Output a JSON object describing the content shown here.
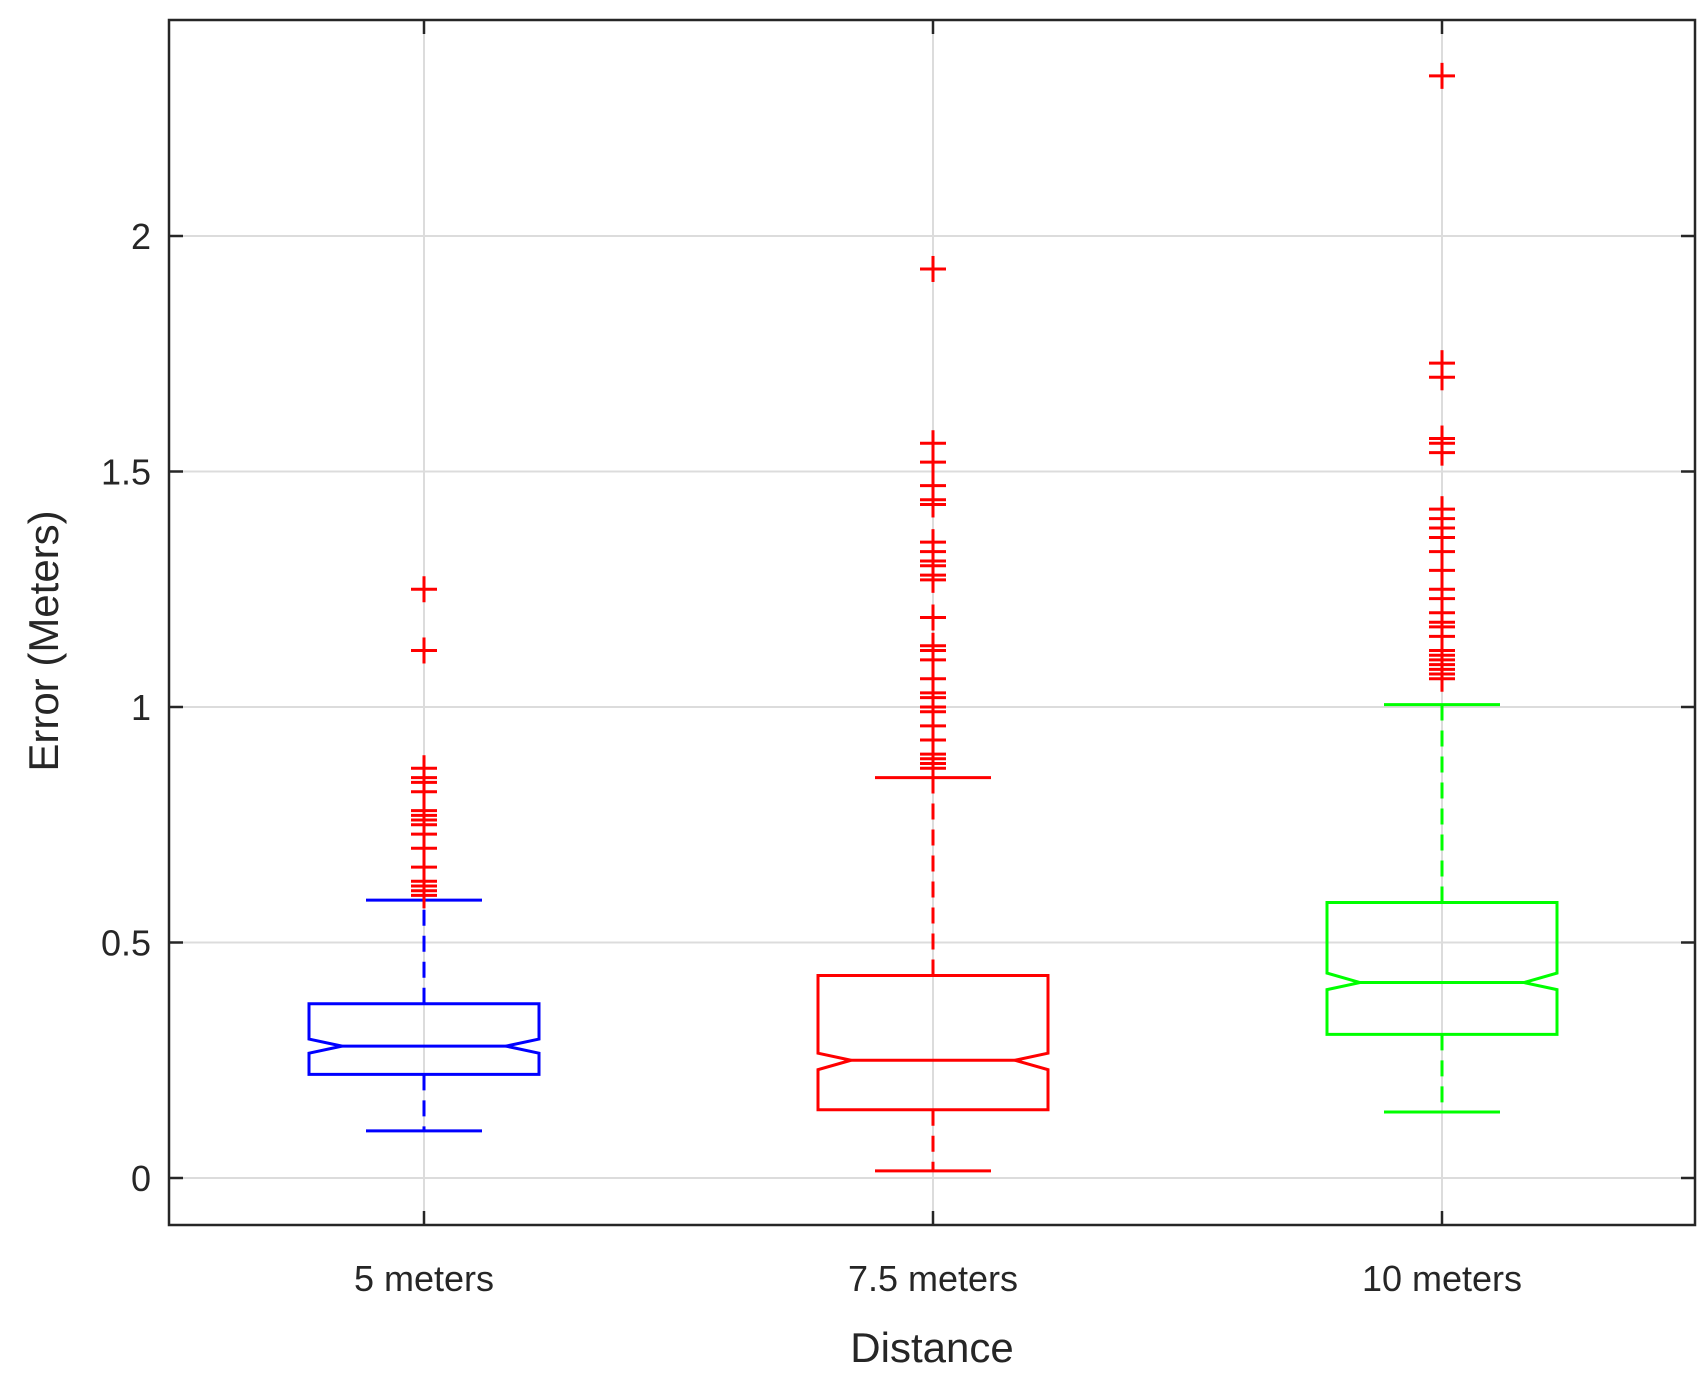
{
  "chart_data": {
    "type": "boxplot",
    "notched": true,
    "xlabel": "Distance",
    "ylabel": "Error (Meters)",
    "ylim": [
      -0.1,
      2.45
    ],
    "yticks": [
      0,
      0.5,
      1,
      1.5,
      2
    ],
    "ytick_labels": [
      "0",
      "0.5",
      "1",
      "1.5",
      "2"
    ],
    "grid": true,
    "categories": [
      "5 meters",
      "7.5 meters",
      "10 meters"
    ],
    "series": [
      {
        "name": "5 meters",
        "color": "#0000ff",
        "whisker_low": 0.1,
        "q1": 0.22,
        "notch_low": 0.265,
        "median": 0.28,
        "notch_high": 0.295,
        "q3": 0.37,
        "whisker_high": 0.59,
        "outliers": [
          0.6,
          0.61,
          0.62,
          0.63,
          0.66,
          0.7,
          0.73,
          0.75,
          0.76,
          0.77,
          0.78,
          0.82,
          0.84,
          0.85,
          0.87,
          1.12,
          1.25
        ]
      },
      {
        "name": "7.5 meters",
        "color": "#ff0000",
        "whisker_low": 0.015,
        "q1": 0.145,
        "notch_low": 0.23,
        "median": 0.25,
        "notch_high": 0.265,
        "q3": 0.43,
        "whisker_high": 0.85,
        "outliers": [
          0.87,
          0.88,
          0.89,
          0.9,
          0.93,
          0.96,
          0.99,
          1.0,
          1.02,
          1.03,
          1.06,
          1.1,
          1.12,
          1.13,
          1.19,
          1.27,
          1.28,
          1.3,
          1.31,
          1.33,
          1.35,
          1.43,
          1.44,
          1.47,
          1.52,
          1.56,
          1.93
        ]
      },
      {
        "name": "10 meters",
        "color": "#00ff00",
        "whisker_low": 0.14,
        "q1": 0.305,
        "notch_low": 0.4,
        "median": 0.415,
        "notch_high": 0.435,
        "q3": 0.585,
        "whisker_high": 1.005,
        "outliers": [
          1.06,
          1.07,
          1.08,
          1.09,
          1.1,
          1.11,
          1.12,
          1.15,
          1.17,
          1.18,
          1.2,
          1.23,
          1.25,
          1.29,
          1.33,
          1.36,
          1.38,
          1.4,
          1.42,
          1.54,
          1.56,
          1.57,
          1.7,
          1.73,
          2.34
        ]
      }
    ],
    "outlier_color": "#ff0000",
    "outlier_marker": "+"
  }
}
